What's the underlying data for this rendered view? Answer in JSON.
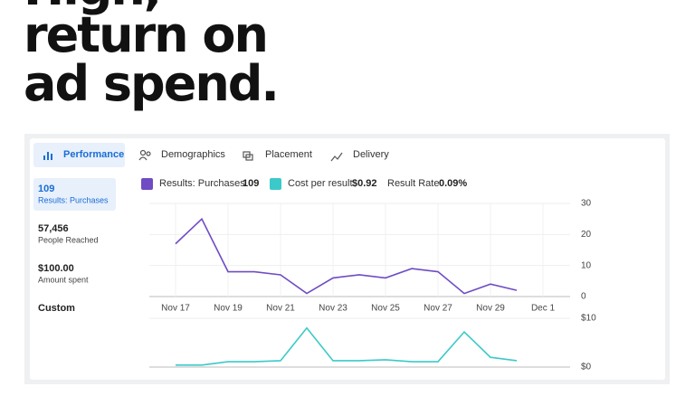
{
  "headline": [
    "High,",
    "return on",
    "ad spend."
  ],
  "tabs": [
    "Performance",
    "Demographics",
    "Placement",
    "Delivery"
  ],
  "metrics": [
    {
      "value": "109",
      "label": "Results: Purchases"
    },
    {
      "value": "57,456",
      "label": "People Reached"
    },
    {
      "value": "$100.00",
      "label": "Amount spent"
    }
  ],
  "custom": "Custom",
  "legend": [
    {
      "name": "Results: Purchases",
      "value": "109",
      "color": "#6f4cc3"
    },
    {
      "name": "Cost per result",
      "value": "$0.92",
      "color": "#3cc9c9"
    },
    {
      "name": "Result Rate",
      "value": "0.09%"
    }
  ],
  "chart_data": [
    {
      "type": "line",
      "categories": [
        "Nov 17",
        null,
        "Nov 19",
        null,
        "Nov 21",
        null,
        "Nov 23",
        null,
        "Nov 25",
        null,
        "Nov 27",
        null,
        "Nov 29",
        null,
        "Dec 1"
      ],
      "series": [
        {
          "name": "Results: Purchases",
          "color": "#6f4cc3",
          "values": [
            17,
            25,
            8,
            8,
            7,
            1,
            6,
            7,
            6,
            9,
            8,
            1,
            4,
            2,
            null
          ]
        }
      ],
      "ylim": [
        0,
        30
      ],
      "yticks": [
        0,
        10,
        20,
        30
      ],
      "grid": true
    },
    {
      "type": "line",
      "categories": [
        "Nov 17",
        null,
        "Nov 19",
        null,
        "Nov 21",
        null,
        "Nov 23",
        null,
        "Nov 25",
        null,
        "Nov 27",
        null,
        "Nov 29",
        null,
        "Dec 1"
      ],
      "series": [
        {
          "name": "Cost per result",
          "color": "#3cc9c9",
          "values": [
            0.4,
            0.4,
            1.1,
            1.1,
            1.3,
            8,
            1.3,
            1.3,
            1.5,
            1.1,
            1.1,
            7.2,
            2,
            1.3,
            null
          ]
        }
      ],
      "ylim": [
        0,
        10
      ],
      "yticks": [
        {
          "value": 0,
          "label": "$0"
        },
        {
          "value": 10,
          "label": "$10"
        }
      ],
      "grid": true
    }
  ]
}
